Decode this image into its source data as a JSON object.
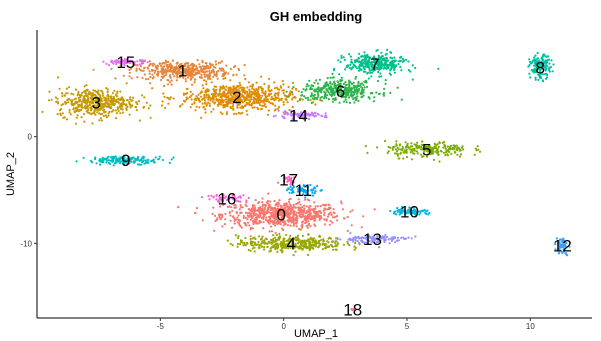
{
  "chart_data": {
    "type": "scatter",
    "title": "GH embedding",
    "xlabel": "UMAP_1",
    "ylabel": "UMAP_2",
    "xlim": [
      -10,
      12.5
    ],
    "ylim": [
      -17,
      10
    ],
    "x_ticks": [
      {
        "value": -5,
        "label": "-5"
      },
      {
        "value": 0,
        "label": "0"
      },
      {
        "value": 5,
        "label": "5"
      },
      {
        "value": 10,
        "label": "10"
      }
    ],
    "y_ticks": [
      {
        "value": 0,
        "label": "0"
      },
      {
        "value": -10,
        "label": "-10"
      }
    ],
    "grid": false,
    "legend": "none",
    "clusters": [
      {
        "label": "0",
        "x": -0.1,
        "y": -7.3,
        "color": "#F8766D",
        "spread_x": 2.0,
        "spread_y": 1.0,
        "n": 700
      },
      {
        "label": "1",
        "x": -4.1,
        "y": 6.2,
        "color": "#E8853A",
        "spread_x": 1.6,
        "spread_y": 0.7,
        "n": 420
      },
      {
        "label": "2",
        "x": -1.9,
        "y": 3.7,
        "color": "#DE8C00",
        "spread_x": 1.9,
        "spread_y": 1.1,
        "n": 620
      },
      {
        "label": "3",
        "x": -7.6,
        "y": 3.2,
        "color": "#C49A00",
        "spread_x": 1.3,
        "spread_y": 1.1,
        "n": 450
      },
      {
        "label": "4",
        "x": 0.3,
        "y": -10.0,
        "color": "#99A800",
        "spread_x": 1.8,
        "spread_y": 0.6,
        "n": 380
      },
      {
        "label": "5",
        "x": 5.8,
        "y": -1.2,
        "color": "#7CAE00",
        "spread_x": 1.4,
        "spread_y": 0.6,
        "n": 220
      },
      {
        "label": "6",
        "x": 2.3,
        "y": 4.3,
        "color": "#2BB44A",
        "spread_x": 1.3,
        "spread_y": 0.8,
        "n": 360
      },
      {
        "label": "7",
        "x": 3.7,
        "y": 6.8,
        "color": "#00C08B",
        "spread_x": 1.0,
        "spread_y": 0.8,
        "n": 330
      },
      {
        "label": "8",
        "x": 10.4,
        "y": 6.5,
        "color": "#00BFA4",
        "spread_x": 0.35,
        "spread_y": 0.9,
        "n": 150
      },
      {
        "label": "9",
        "x": -6.4,
        "y": -2.2,
        "color": "#00BDC2",
        "spread_x": 1.3,
        "spread_y": 0.3,
        "n": 160
      },
      {
        "label": "10",
        "x": 5.1,
        "y": -7.0,
        "color": "#00B8E5",
        "spread_x": 0.6,
        "spread_y": 0.3,
        "n": 80
      },
      {
        "label": "11",
        "x": 0.8,
        "y": -5.0,
        "color": "#00A9FF",
        "spread_x": 0.6,
        "spread_y": 0.4,
        "n": 60
      },
      {
        "label": "12",
        "x": 11.3,
        "y": -10.2,
        "color": "#35A2FF",
        "spread_x": 0.2,
        "spread_y": 0.7,
        "n": 50
      },
      {
        "label": "13",
        "x": 3.6,
        "y": -9.6,
        "color": "#9590FF",
        "spread_x": 1.2,
        "spread_y": 0.3,
        "n": 110
      },
      {
        "label": "14",
        "x": 0.6,
        "y": 2.0,
        "color": "#C77CFF",
        "spread_x": 0.9,
        "spread_y": 0.25,
        "n": 90
      },
      {
        "label": "15",
        "x": -6.4,
        "y": 7.0,
        "color": "#E76BF3",
        "spread_x": 0.7,
        "spread_y": 0.2,
        "n": 70
      },
      {
        "label": "16",
        "x": -2.3,
        "y": -5.8,
        "color": "#FA62DB",
        "spread_x": 0.7,
        "spread_y": 0.3,
        "n": 50
      },
      {
        "label": "17",
        "x": 0.2,
        "y": -4.0,
        "color": "#FF62BC",
        "spread_x": 0.3,
        "spread_y": 0.3,
        "n": 25
      },
      {
        "label": "18",
        "x": 2.8,
        "y": -16.2,
        "color": "#FF6C91",
        "spread_x": 0.1,
        "spread_y": 0.1,
        "n": 4
      }
    ]
  }
}
